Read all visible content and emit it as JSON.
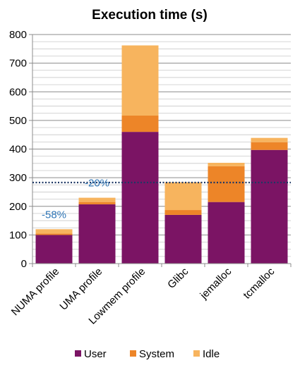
{
  "chart_data": {
    "type": "bar",
    "stacked": true,
    "title": "Execution time (s)",
    "categories": [
      "NUMA profile",
      "UMA profile",
      "Lowmem profile",
      "Glibc",
      "jemalloc",
      "tcmalloc"
    ],
    "series": [
      {
        "name": "User",
        "color": "#7b1464",
        "values": [
          100,
          207,
          460,
          170,
          215,
          397
        ]
      },
      {
        "name": "System",
        "color": "#ed8528",
        "values": [
          5,
          8,
          57,
          17,
          125,
          27
        ]
      },
      {
        "name": "Idle",
        "color": "#f7b45e",
        "values": [
          15,
          15,
          245,
          97,
          12,
          15
        ]
      }
    ],
    "ylim": [
      0,
      800
    ],
    "yticks": [
      0,
      100,
      200,
      300,
      400,
      500,
      600,
      700,
      800
    ],
    "grid": true,
    "reference_line": {
      "value": 283,
      "style": "dotted",
      "color": "#1f3864"
    },
    "annotations": [
      {
        "category": "NUMA profile",
        "text": "-58%"
      },
      {
        "category": "UMA profile",
        "text": "-20%"
      }
    ],
    "legend": {
      "position": "bottom"
    }
  }
}
